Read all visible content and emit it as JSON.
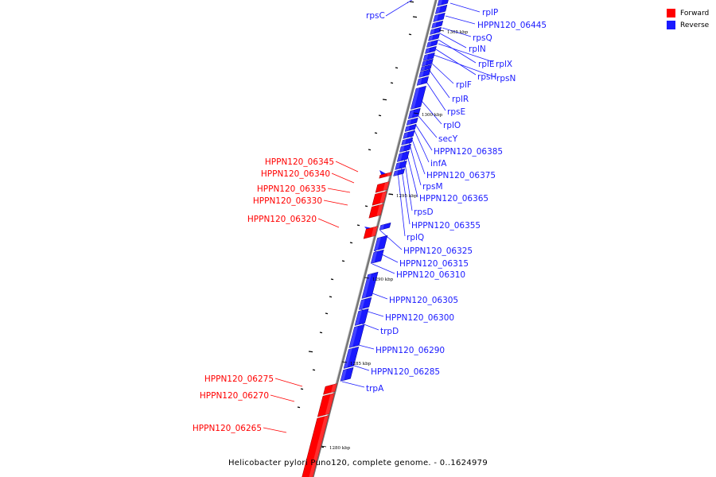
{
  "legend": {
    "forward_label": "Forward",
    "reverse_label": "Reverse",
    "forward_color": "#ff0000",
    "reverse_color": "#1a1aff"
  },
  "caption": "Helicobacter pylori Puno120, complete genome. - 0..1624979",
  "ticks": [
    {
      "label": "1305 kbp",
      "kbp": 1305
    },
    {
      "label": "1300 kbp",
      "kbp": 1300
    },
    {
      "label": "1295 kbp",
      "kbp": 1295
    },
    {
      "label": "1290 kbp",
      "kbp": 1290
    },
    {
      "label": "1285 kbp",
      "kbp": 1285
    },
    {
      "label": "1280 kbp",
      "kbp": 1280
    }
  ],
  "genes_reverse": [
    "rpsC",
    "rplP",
    "HPPN120_06445",
    "rpsQ",
    "rplN",
    "rplE",
    "rplX",
    "rpsH",
    "rpsN",
    "rplF",
    "rplR",
    "rpsE",
    "rplO",
    "secY",
    "HPPN120_06385",
    "infA",
    "HPPN120_06375",
    "rpsM",
    "HPPN120_06365",
    "rpsD",
    "HPPN120_06355",
    "rplQ",
    "HPPN120_06325",
    "HPPN120_06315",
    "HPPN120_06310",
    "HPPN120_06305",
    "HPPN120_06300",
    "trpD",
    "HPPN120_06290",
    "HPPN120_06285",
    "trpA"
  ],
  "genes_forward": [
    "HPPN120_06345",
    "HPPN120_06340",
    "HPPN120_06335",
    "HPPN120_06330",
    "HPPN120_06320",
    "HPPN120_06275",
    "HPPN120_06270",
    "HPPN120_06265"
  ]
}
